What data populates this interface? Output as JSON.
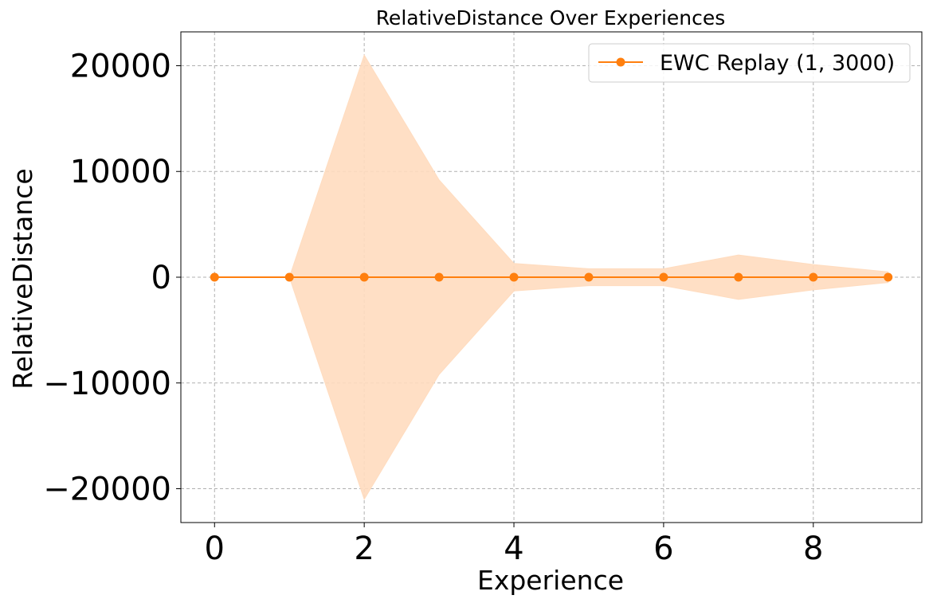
{
  "chart_data": {
    "type": "line",
    "title": "RelativeDistance Over Experiences",
    "xlabel": "Experience",
    "ylabel": "RelativeDistance",
    "xlim": [
      -0.45,
      9.45
    ],
    "ylim": [
      -23200,
      23200
    ],
    "xticks": [
      0,
      2,
      4,
      6,
      8
    ],
    "xtick_labels": [
      "0",
      "2",
      "4",
      "6",
      "8"
    ],
    "yticks": [
      -20000,
      -10000,
      0,
      10000,
      20000
    ],
    "ytick_labels": [
      "−20000",
      "−10000",
      "0",
      "10000",
      "20000"
    ],
    "grid": true,
    "legend_position": "top-right",
    "series": [
      {
        "name": "EWC Replay (1, 3000)",
        "color": "#ff7f0e",
        "band_color": "#ffdcbf",
        "x": [
          0,
          1,
          2,
          3,
          4,
          5,
          6,
          7,
          8,
          9
        ],
        "y": [
          0,
          0,
          0,
          0,
          0,
          0,
          0,
          0,
          0,
          0
        ],
        "band_upper": [
          0,
          0,
          21000,
          9200,
          1300,
          800,
          800,
          2100,
          1200,
          500
        ],
        "band_lower": [
          0,
          0,
          -21000,
          -9200,
          -1300,
          -800,
          -800,
          -2100,
          -1200,
          -500
        ]
      }
    ]
  }
}
